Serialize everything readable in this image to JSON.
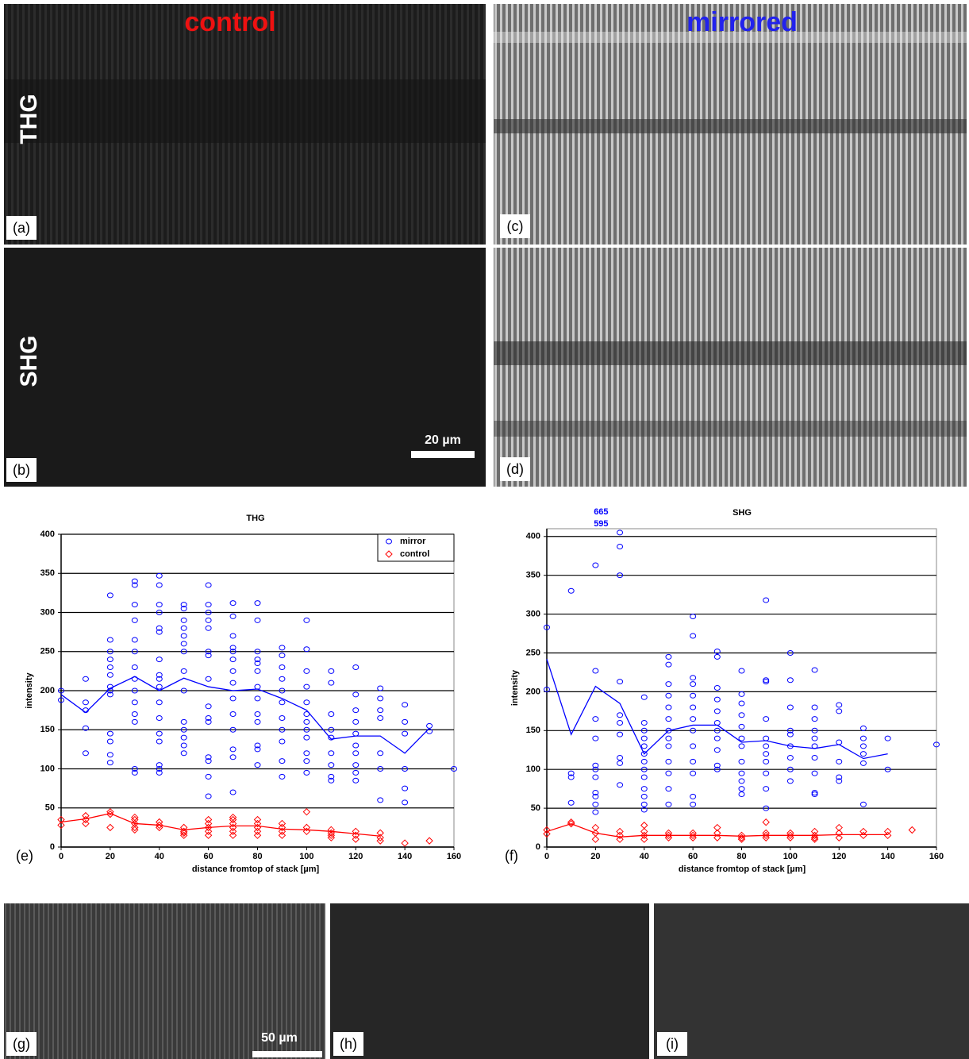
{
  "headers": {
    "left": "control",
    "right": "mirrored"
  },
  "rows": [
    "THG",
    "SHG"
  ],
  "image_panels": [
    "(a)",
    "(b)",
    "(c)",
    "(d)",
    "(g)",
    "(h)",
    "(i)"
  ],
  "scale_bars": [
    "20 µm",
    "50 µm"
  ],
  "chart_data": [
    {
      "type": "scatter",
      "title": "THG",
      "panel_label": "(e)",
      "x_label": "distance fromtop of stack [µm]",
      "y_label": "intensity",
      "xlim": [
        0,
        160
      ],
      "xticks": [
        0,
        20,
        40,
        60,
        80,
        100,
        120,
        140,
        160
      ],
      "ylim": [
        0,
        400
      ],
      "yticks": [
        0,
        50,
        100,
        150,
        200,
        250,
        300,
        350,
        400
      ],
      "grid": true,
      "legend": "upper right",
      "series": [
        {
          "name": "mirror",
          "color": "#0000ff",
          "marker": "circle",
          "points": [
            {
              "x": 0,
              "values": [
                200,
                188
              ]
            },
            {
              "x": 10,
              "values": [
                215,
                185,
                175,
                152,
                120
              ]
            },
            {
              "x": 20,
              "values": [
                322,
                265,
                250,
                240,
                230,
                220,
                205,
                200,
                195,
                145,
                135,
                118,
                108
              ]
            },
            {
              "x": 30,
              "values": [
                340,
                335,
                310,
                290,
                265,
                250,
                230,
                215,
                200,
                185,
                170,
                160,
                100,
                95
              ]
            },
            {
              "x": 40,
              "values": [
                347,
                335,
                310,
                300,
                280,
                275,
                240,
                220,
                215,
                205,
                185,
                165,
                145,
                135,
                105,
                100,
                95
              ]
            },
            {
              "x": 50,
              "values": [
                310,
                305,
                290,
                280,
                270,
                260,
                250,
                225,
                200,
                160,
                150,
                140,
                130,
                120
              ]
            },
            {
              "x": 60,
              "values": [
                335,
                310,
                300,
                290,
                280,
                250,
                245,
                215,
                180,
                165,
                160,
                115,
                110,
                90,
                65
              ]
            },
            {
              "x": 70,
              "values": [
                312,
                295,
                270,
                255,
                250,
                240,
                225,
                210,
                190,
                170,
                150,
                125,
                115,
                70
              ]
            },
            {
              "x": 80,
              "values": [
                312,
                290,
                250,
                240,
                235,
                225,
                205,
                190,
                170,
                160,
                130,
                125,
                105
              ]
            },
            {
              "x": 90,
              "values": [
                255,
                245,
                230,
                215,
                200,
                185,
                165,
                150,
                135,
                110,
                90
              ]
            },
            {
              "x": 100,
              "values": [
                290,
                253,
                225,
                205,
                185,
                170,
                160,
                150,
                140,
                120,
                110,
                95
              ]
            },
            {
              "x": 110,
              "values": [
                225,
                210,
                170,
                150,
                140,
                120,
                105,
                90,
                85
              ]
            },
            {
              "x": 120,
              "values": [
                230,
                195,
                175,
                160,
                145,
                130,
                120,
                105,
                95,
                85
              ]
            },
            {
              "x": 130,
              "values": [
                203,
                190,
                175,
                165,
                120,
                100,
                60
              ]
            },
            {
              "x": 140,
              "values": [
                182,
                160,
                145,
                100,
                75,
                57
              ]
            },
            {
              "x": 150,
              "values": [
                155,
                148
              ]
            },
            {
              "x": 160,
              "values": [
                100
              ]
            }
          ],
          "mean_x": [
            0,
            10,
            20,
            30,
            40,
            50,
            60,
            70,
            80,
            90,
            100,
            110,
            120,
            130,
            140,
            150
          ],
          "mean": [
            195,
            172,
            203,
            218,
            200,
            216,
            205,
            200,
            202,
            190,
            175,
            138,
            142,
            142,
            120,
            152
          ]
        },
        {
          "name": "control",
          "color": "#ff0000",
          "marker": "diamond",
          "points": [
            {
              "x": 0,
              "values": [
                35,
                28
              ]
            },
            {
              "x": 10,
              "values": [
                40,
                35,
                30
              ]
            },
            {
              "x": 20,
              "values": [
                45,
                42,
                25
              ]
            },
            {
              "x": 30,
              "values": [
                38,
                35,
                30,
                25,
                22
              ]
            },
            {
              "x": 40,
              "values": [
                32,
                28,
                25
              ]
            },
            {
              "x": 50,
              "values": [
                25,
                20,
                18,
                15
              ]
            },
            {
              "x": 60,
              "values": [
                35,
                30,
                25,
                20,
                15
              ]
            },
            {
              "x": 70,
              "values": [
                38,
                35,
                30,
                25,
                20,
                15
              ]
            },
            {
              "x": 80,
              "values": [
                35,
                30,
                25,
                20,
                15
              ]
            },
            {
              "x": 90,
              "values": [
                30,
                25,
                20,
                15
              ]
            },
            {
              "x": 100,
              "values": [
                45,
                25,
                20
              ]
            },
            {
              "x": 110,
              "values": [
                22,
                18,
                15,
                12
              ]
            },
            {
              "x": 120,
              "values": [
                20,
                15,
                10
              ]
            },
            {
              "x": 130,
              "values": [
                18,
                12,
                8
              ]
            },
            {
              "x": 140,
              "values": [
                5
              ]
            },
            {
              "x": 150,
              "values": [
                8
              ]
            }
          ],
          "mean_x": [
            0,
            10,
            20,
            30,
            40,
            50,
            60,
            70,
            80,
            90,
            100,
            110,
            120,
            130
          ],
          "mean": [
            32,
            36,
            43,
            30,
            28,
            22,
            25,
            27,
            27,
            23,
            22,
            20,
            17,
            14
          ]
        }
      ]
    },
    {
      "type": "scatter",
      "title": "SHG",
      "panel_label": "(f)",
      "x_label": "distance fromtop of stack [µm]",
      "y_label": "intensity",
      "xlim": [
        0,
        160
      ],
      "xticks": [
        0,
        20,
        40,
        60,
        80,
        100,
        120,
        140,
        160
      ],
      "ylim": [
        0,
        410
      ],
      "yticks": [
        0,
        50,
        100,
        150,
        200,
        250,
        300,
        350,
        400
      ],
      "grid": true,
      "offscale_x": 20,
      "offscale_values": [
        665,
        595
      ],
      "series": [
        {
          "name": "mirror",
          "color": "#0000ff",
          "marker": "circle",
          "points": [
            {
              "x": 0,
              "values": [
                283,
                203
              ]
            },
            {
              "x": 10,
              "values": [
                330,
                95,
                90,
                57
              ]
            },
            {
              "x": 20,
              "values": [
                363,
                227,
                165,
                140,
                105,
                100,
                90,
                70,
                65,
                55,
                45
              ]
            },
            {
              "x": 30,
              "values": [
                405,
                387,
                350,
                213,
                170,
                160,
                145,
                115,
                108,
                80
              ]
            },
            {
              "x": 40,
              "values": [
                193,
                160,
                150,
                140,
                130,
                120,
                110,
                100,
                90,
                75,
                65,
                55,
                48
              ]
            },
            {
              "x": 50,
              "values": [
                245,
                235,
                210,
                195,
                180,
                165,
                150,
                140,
                130,
                110,
                95,
                75,
                55
              ]
            },
            {
              "x": 60,
              "values": [
                297,
                272,
                218,
                210,
                195,
                180,
                165,
                150,
                130,
                110,
                95,
                65,
                55
              ]
            },
            {
              "x": 70,
              "values": [
                252,
                245,
                205,
                190,
                175,
                160,
                150,
                140,
                125,
                105,
                100
              ]
            },
            {
              "x": 80,
              "values": [
                227,
                197,
                185,
                170,
                155,
                140,
                130,
                110,
                95,
                85,
                75,
                68
              ]
            },
            {
              "x": 90,
              "values": [
                318,
                215,
                213,
                165,
                140,
                130,
                120,
                110,
                95,
                75,
                50
              ]
            },
            {
              "x": 100,
              "values": [
                250,
                215,
                180,
                150,
                145,
                130,
                115,
                100,
                85
              ]
            },
            {
              "x": 110,
              "values": [
                228,
                180,
                165,
                150,
                140,
                130,
                115,
                95,
                70,
                68
              ]
            },
            {
              "x": 120,
              "values": [
                183,
                175,
                135,
                110,
                90,
                85
              ]
            },
            {
              "x": 130,
              "values": [
                153,
                140,
                130,
                120,
                108,
                55
              ]
            },
            {
              "x": 140,
              "values": [
                140,
                100
              ]
            },
            {
              "x": 160,
              "values": [
                132
              ]
            }
          ],
          "mean_x": [
            0,
            10,
            20,
            30,
            40,
            50,
            60,
            70,
            80,
            90,
            100,
            110,
            120,
            130,
            140
          ],
          "mean": [
            242,
            145,
            207,
            185,
            120,
            150,
            157,
            157,
            135,
            137,
            130,
            127,
            132,
            114,
            120
          ]
        },
        {
          "name": "control",
          "color": "#ff0000",
          "marker": "diamond",
          "points": [
            {
              "x": 0,
              "values": [
                22,
                17
              ]
            },
            {
              "x": 10,
              "values": [
                32,
                30
              ]
            },
            {
              "x": 20,
              "values": [
                25,
                18,
                10
              ]
            },
            {
              "x": 30,
              "values": [
                20,
                15,
                10
              ]
            },
            {
              "x": 40,
              "values": [
                28,
                20,
                15,
                10
              ]
            },
            {
              "x": 50,
              "values": [
                18,
                15,
                12
              ]
            },
            {
              "x": 60,
              "values": [
                18,
                15,
                12
              ]
            },
            {
              "x": 70,
              "values": [
                25,
                18,
                12
              ]
            },
            {
              "x": 80,
              "values": [
                15,
                12,
                10
              ]
            },
            {
              "x": 90,
              "values": [
                32,
                18,
                15,
                12
              ]
            },
            {
              "x": 100,
              "values": [
                18,
                15,
                12
              ]
            },
            {
              "x": 110,
              "values": [
                20,
                15,
                12,
                10
              ]
            },
            {
              "x": 120,
              "values": [
                25,
                18,
                12
              ]
            },
            {
              "x": 130,
              "values": [
                20,
                15
              ]
            },
            {
              "x": 140,
              "values": [
                20,
                15
              ]
            },
            {
              "x": 150,
              "values": [
                22
              ]
            }
          ],
          "mean_x": [
            0,
            10,
            20,
            30,
            40,
            50,
            60,
            70,
            80,
            90,
            100,
            110,
            120,
            130,
            140
          ],
          "mean": [
            20,
            30,
            18,
            13,
            15,
            15,
            15,
            15,
            14,
            15,
            15,
            15,
            16,
            16,
            16
          ]
        }
      ]
    }
  ]
}
